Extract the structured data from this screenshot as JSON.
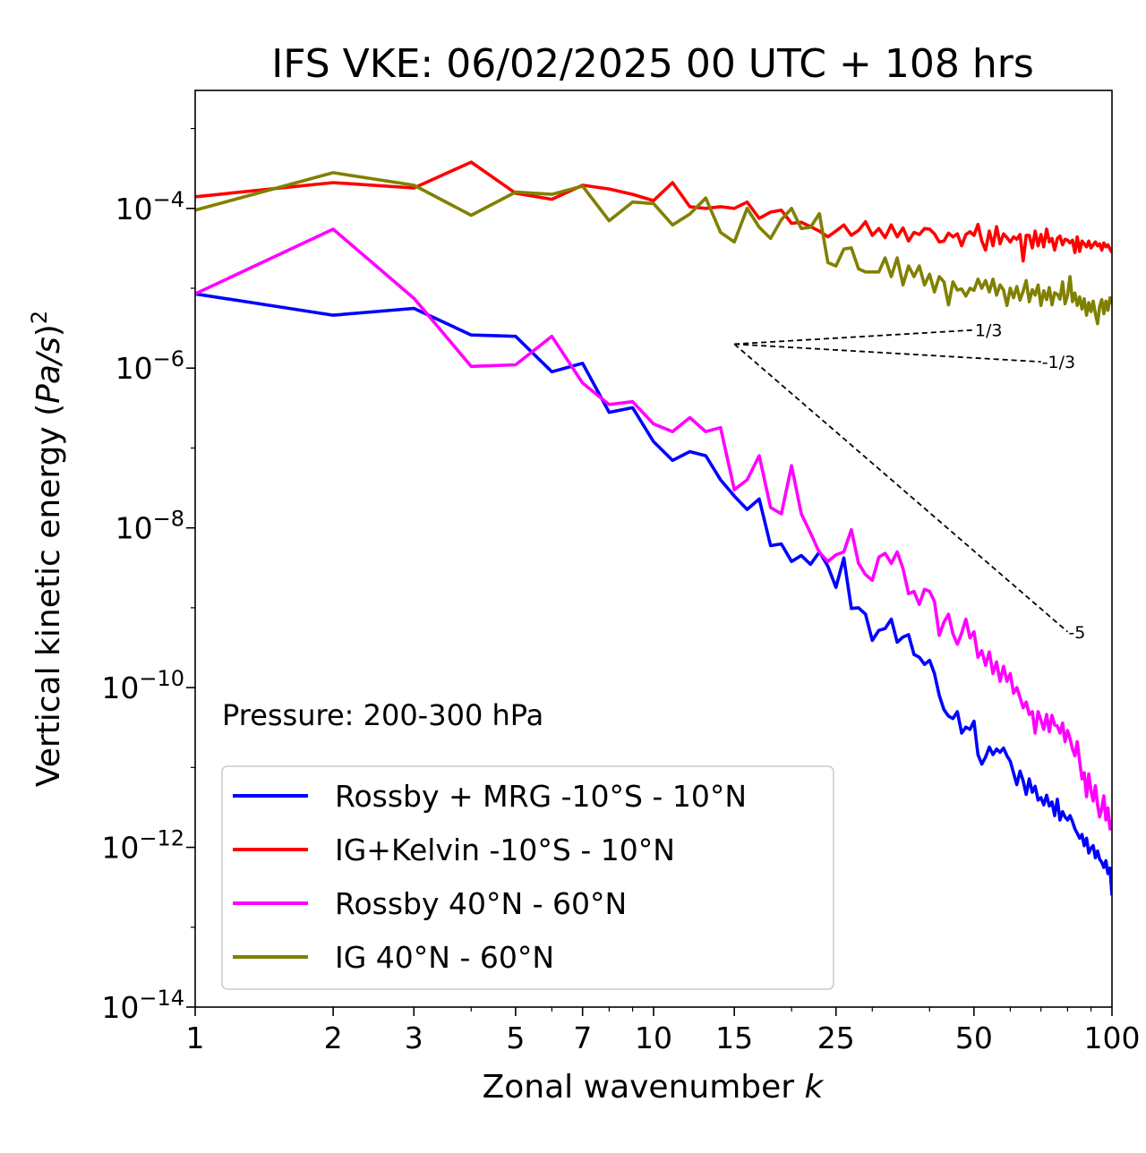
{
  "chart_data": {
    "type": "line",
    "title": "IFS VKE: 06/02/2025 00 UTC + 108 hrs",
    "xlabel": "Zonal wavenumber k",
    "ylabel": "Vertical kinetic energy (Pa/s)²",
    "x_scale": "log",
    "y_scale": "log",
    "xlim": [
      1,
      100
    ],
    "ylim": [
      1e-14,
      0.003
    ],
    "x_ticks": [
      "1",
      "2",
      "3",
      "5",
      "7",
      "10",
      "15",
      "25",
      "50",
      "100"
    ],
    "y_ticks": [
      {
        "value": 0.0001,
        "base": "10",
        "exp": "−4"
      },
      {
        "value": 1e-06,
        "base": "10",
        "exp": "−6"
      },
      {
        "value": 1e-08,
        "base": "10",
        "exp": "−8"
      },
      {
        "value": 1e-10,
        "base": "10",
        "exp": "−10"
      },
      {
        "value": 1e-12,
        "base": "10",
        "exp": "−12"
      },
      {
        "value": 1e-14,
        "base": "10",
        "exp": "−14"
      }
    ],
    "annotation": "Pressure: 200-300 hPa",
    "legend_position": "lower-left",
    "reference_slopes": [
      {
        "label": "1/3",
        "x_start": 15,
        "y_start": 2e-06,
        "x_end": 50,
        "y_end": 3e-06
      },
      {
        "label": "-1/3",
        "x_start": 15,
        "y_start": 2e-06,
        "x_end": 70,
        "y_end": 1.2e-06
      },
      {
        "label": "-5",
        "x_start": 15,
        "y_start": 2e-06,
        "x_end": 80,
        "y_end": 5e-10
      }
    ],
    "series": [
      {
        "name": "Rossby + MRG -10°S - 10°N",
        "color": "#0000ff",
        "x": [
          1,
          2,
          3,
          4,
          5,
          6,
          7,
          8,
          9,
          10,
          11,
          12,
          13,
          14,
          15,
          16,
          17,
          18,
          19,
          20,
          21,
          22,
          23,
          24,
          25,
          26,
          27,
          28,
          29,
          30,
          31,
          32,
          33,
          34,
          35,
          36,
          37,
          38,
          39,
          40,
          41,
          42,
          43,
          44,
          45,
          46,
          47,
          48,
          49,
          50,
          51,
          52,
          53,
          54,
          55,
          56,
          57,
          58,
          59,
          60,
          61,
          62,
          63,
          64,
          65,
          66,
          67,
          68,
          69,
          70,
          71,
          72,
          73,
          74,
          75,
          76,
          77,
          78,
          79,
          80,
          81,
          82,
          83,
          84,
          85,
          86,
          87,
          88,
          89,
          90,
          91,
          92,
          93,
          94,
          95,
          96,
          97,
          98,
          99,
          100
        ],
        "y": [
          8.5e-06,
          4.6e-06,
          5.6e-06,
          2.6e-06,
          2.5e-06,
          9e-07,
          1.15e-06,
          2.8e-07,
          3.2e-07,
          1.2e-07,
          7e-08,
          9e-08,
          8e-08,
          4e-08,
          2.5e-08,
          1.7e-08,
          2.3e-08,
          6e-09,
          6.3e-09,
          3.8e-09,
          4.5e-09,
          3.5e-09,
          5e-09,
          3.3e-09,
          1.8e-09,
          4.2e-09,
          9.8e-10,
          1e-09,
          8.3e-10,
          3.9e-10,
          5.2e-10,
          5.5e-10,
          7.2e-10,
          3.7e-10,
          4.3e-10,
          4.6e-10,
          2.6e-10,
          2.4e-10,
          1.95e-10,
          2.2e-10,
          1.5e-10,
          8e-11,
          5.3e-11,
          4.4e-11,
          4.1e-11,
          5e-11,
          2.7e-11,
          3.2e-11,
          3e-11,
          3.8e-11,
          1.45e-11,
          1.1e-11,
          1.35e-11,
          1.8e-11,
          1.45e-11,
          1.7e-11,
          1.55e-11,
          1.75e-11,
          1.4e-11,
          1.2e-11,
          8.5e-12,
          6.1e-12,
          9e-12,
          6.8e-12,
          4.6e-12,
          7.2e-12,
          4.9e-12,
          5.8e-12,
          3.9e-12,
          4.2e-12,
          3.4e-12,
          4.5e-12,
          3.3e-12,
          3.7e-12,
          2.5e-12,
          4e-12,
          2.2e-12,
          2.8e-12,
          2.4e-12,
          2.2e-12,
          2.5e-12,
          2.1e-12,
          1.7e-12,
          1.5e-12,
          1.3e-12,
          1.45e-12,
          1.05e-12,
          1.3e-12,
          8.5e-13,
          9.8e-13,
          1.05e-12,
          7.4e-13,
          9e-13,
          7.1e-13,
          6.5e-13,
          5.6e-13,
          6.8e-13,
          4.7e-13,
          5.5e-13,
          2.5e-13
        ]
      },
      {
        "name": "IG+Kelvin -10°S - 10°N",
        "color": "#ff0000",
        "x": [
          1,
          2,
          3,
          4,
          5,
          6,
          7,
          8,
          9,
          10,
          11,
          12,
          13,
          14,
          15,
          16,
          17,
          18,
          19,
          20,
          21,
          22,
          23,
          24,
          25,
          26,
          27,
          28,
          29,
          30,
          31,
          32,
          33,
          34,
          35,
          36,
          37,
          38,
          39,
          40,
          41,
          42,
          43,
          44,
          45,
          46,
          47,
          48,
          49,
          50,
          51,
          52,
          53,
          54,
          55,
          56,
          57,
          58,
          59,
          60,
          61,
          62,
          63,
          64,
          65,
          66,
          67,
          68,
          69,
          70,
          71,
          72,
          73,
          74,
          75,
          76,
          77,
          78,
          79,
          80,
          81,
          82,
          83,
          84,
          85,
          86,
          87,
          88,
          89,
          90,
          91,
          92,
          93,
          94,
          95,
          96,
          97,
          98,
          99,
          100
        ],
        "y": [
          0.00014,
          0.00021,
          0.00018,
          0.00038,
          0.000155,
          0.00013,
          0.000195,
          0.000175,
          0.00015,
          0.000125,
          0.00021,
          0.000105,
          0.0001,
          0.000105,
          0.0001,
          0.00012,
          7.5e-05,
          9e-05,
          9.5e-05,
          6.5e-05,
          6.7e-05,
          5.9e-05,
          5.2e-05,
          4.4e-05,
          5.2e-05,
          6.2e-05,
          4.6e-05,
          5.3e-05,
          6.8e-05,
          4.6e-05,
          5.6e-05,
          4.3e-05,
          6.2e-05,
          4.4e-05,
          5.7e-05,
          3.9e-05,
          5e-05,
          4.7e-05,
          5.6e-05,
          5.5e-05,
          4.8e-05,
          3.8e-05,
          3.9e-05,
          4.9e-05,
          4.4e-05,
          4.8e-05,
          3.4e-05,
          4.7e-05,
          5.1e-05,
          4.6e-05,
          6.3e-05,
          3.9e-05,
          3e-05,
          5.2e-05,
          3.4e-05,
          5.9e-05,
          3.6e-05,
          4.8e-05,
          4.3e-05,
          3.8e-05,
          4.4e-05,
          4.1e-05,
          4.7e-05,
          2.2e-05,
          4.6e-05,
          4.6e-05,
          3.2e-05,
          5.2e-05,
          3.4e-05,
          4.7e-05,
          3.3e-05,
          5.5e-05,
          3.8e-05,
          4.2e-05,
          3e-05,
          4.2e-05,
          4.5e-05,
          3.5e-05,
          4.1e-05,
          4e-05,
          3.7e-05,
          4e-05,
          2.8e-05,
          4.4e-05,
          2.9e-05,
          3.9e-05,
          3.6e-05,
          3.3e-05,
          3.9e-05,
          3.2e-05,
          3.5e-05,
          3.8e-05,
          3.4e-05,
          3.6e-05,
          3e-05,
          3.7e-05,
          3.3e-05,
          3.5e-05,
          3.1e-05,
          2.8e-05
        ]
      },
      {
        "name": "Rossby 40°N - 60°N",
        "color": "#ff00ff",
        "x": [
          1,
          2,
          3,
          4,
          5,
          6,
          7,
          8,
          9,
          10,
          11,
          12,
          13,
          14,
          15,
          16,
          17,
          18,
          19,
          20,
          21,
          22,
          23,
          24,
          25,
          26,
          27,
          28,
          29,
          30,
          31,
          32,
          33,
          34,
          35,
          36,
          37,
          38,
          39,
          40,
          41,
          42,
          43,
          44,
          45,
          46,
          47,
          48,
          49,
          50,
          51,
          52,
          53,
          54,
          55,
          56,
          57,
          58,
          59,
          60,
          61,
          62,
          63,
          64,
          65,
          66,
          67,
          68,
          69,
          70,
          71,
          72,
          73,
          74,
          75,
          76,
          77,
          78,
          79,
          80,
          81,
          82,
          83,
          84,
          85,
          86,
          87,
          88,
          89,
          90,
          91,
          92,
          93,
          94,
          95,
          96,
          97,
          98,
          99,
          100
        ],
        "y": [
          8.5e-06,
          5.5e-05,
          7.5e-06,
          1.05e-06,
          1.1e-06,
          2.5e-06,
          6.5e-07,
          3.5e-07,
          3.8e-07,
          2e-07,
          1.6e-07,
          2.4e-07,
          1.6e-07,
          1.8e-07,
          3e-08,
          4e-08,
          8e-08,
          1.8e-08,
          1.5e-08,
          6e-08,
          1.5e-08,
          8.6e-09,
          4.9e-09,
          3.8e-09,
          4.6e-09,
          5e-09,
          9.5e-09,
          3.6e-09,
          2.6e-09,
          2.2e-09,
          4.3e-09,
          4.8e-09,
          3.6e-09,
          5e-09,
          3.1e-09,
          1.5e-09,
          1.6e-09,
          1.1e-09,
          1.7e-09,
          1.6e-09,
          1.2e-09,
          4.5e-10,
          6.6e-10,
          8.3e-10,
          4.7e-10,
          3.5e-10,
          4.8e-10,
          7.2e-10,
          4.2e-10,
          5e-10,
          2.4e-10,
          2.9e-10,
          1.9e-10,
          2.8e-10,
          1.5e-10,
          2.1e-10,
          1.2e-10,
          1.85e-10,
          1.2e-10,
          1.5e-10,
          8.5e-11,
          1e-10,
          7.5e-11,
          5.6e-11,
          6.6e-11,
          4.6e-11,
          5e-11,
          2.7e-11,
          5e-11,
          3.9e-11,
          3e-11,
          4.6e-11,
          2.8e-11,
          4.5e-11,
          3.4e-11,
          3.3e-11,
          2.7e-11,
          3.6e-11,
          2.1e-11,
          2.9e-11,
          2.3e-11,
          1.7e-11,
          1.4e-11,
          2.1e-11,
          1.2e-11,
          7.2e-12,
          8.6e-12,
          4.3e-12,
          8.3e-12,
          5.1e-12,
          3.8e-12,
          5.9e-12,
          3.4e-12,
          2.4e-12,
          3.1e-12,
          4.4e-12,
          2.2e-12,
          3.1e-12,
          1.7e-12,
          2.2e-12
        ]
      },
      {
        "name": "IG 40°N - 60°N",
        "color": "#808000",
        "x": [
          1,
          2,
          3,
          4,
          5,
          6,
          7,
          8,
          9,
          10,
          11,
          12,
          13,
          14,
          15,
          16,
          17,
          18,
          19,
          20,
          21,
          22,
          23,
          24,
          25,
          26,
          27,
          28,
          29,
          30,
          31,
          32,
          33,
          34,
          35,
          36,
          37,
          38,
          39,
          40,
          41,
          42,
          43,
          44,
          45,
          46,
          47,
          48,
          49,
          50,
          51,
          52,
          53,
          54,
          55,
          56,
          57,
          58,
          59,
          60,
          61,
          62,
          63,
          64,
          65,
          66,
          67,
          68,
          69,
          70,
          71,
          72,
          73,
          74,
          75,
          76,
          77,
          78,
          79,
          80,
          81,
          82,
          83,
          84,
          85,
          86,
          87,
          88,
          89,
          90,
          91,
          92,
          93,
          94,
          95,
          96,
          97,
          98,
          99,
          100
        ],
        "y": [
          9.5e-05,
          0.00028,
          0.000195,
          8.2e-05,
          0.00016,
          0.00015,
          0.00019,
          7e-05,
          0.00012,
          0.000115,
          6.2e-05,
          8.5e-05,
          0.000135,
          5e-05,
          3.8e-05,
          0.0001,
          5.8e-05,
          4.2e-05,
          7.2e-05,
          0.0001,
          5.6e-05,
          5.8e-05,
          8.6e-05,
          2.1e-05,
          1.9e-05,
          3.1e-05,
          3.2e-05,
          1.75e-05,
          1.6e-05,
          1.6e-05,
          1.6e-05,
          2.4e-05,
          1.4e-05,
          2.4e-05,
          1.1e-05,
          1.9e-05,
          1.4e-05,
          1.9e-05,
          1.1e-05,
          1.5e-05,
          9e-06,
          1.4e-05,
          1.2e-05,
          6.2e-06,
          1.2e-05,
          9.5e-06,
          9.8e-06,
          8e-06,
          1e-05,
          9.4e-06,
          1.3e-05,
          1e-05,
          1.25e-05,
          9e-06,
          1.3e-05,
          8.2e-06,
          1.1e-05,
          9.5e-06,
          6.1e-06,
          1e-05,
          7.6e-06,
          1.05e-05,
          7.1e-06,
          9.2e-06,
          1.25e-05,
          6.8e-06,
          9.6e-06,
          8.2e-06,
          1.1e-05,
          6.1e-06,
          9.3e-06,
          7.2e-06,
          1.02e-05,
          6.2e-06,
          8.8e-06,
          8.4e-06,
          7.3e-06,
          1.2e-05,
          6.4e-06,
          8.2e-06,
          1.4e-05,
          6.8e-06,
          8.7e-06,
          6.1e-06,
          7.8e-06,
          5.5e-06,
          7.4e-06,
          4.6e-06,
          6.6e-06,
          5.1e-06,
          6.9e-06,
          4.8e-06,
          3.6e-06,
          5.9e-06,
          7.2e-06,
          4.8e-06,
          6.9e-06,
          5.3e-06,
          7.6e-06,
          6.4e-06
        ]
      }
    ]
  }
}
